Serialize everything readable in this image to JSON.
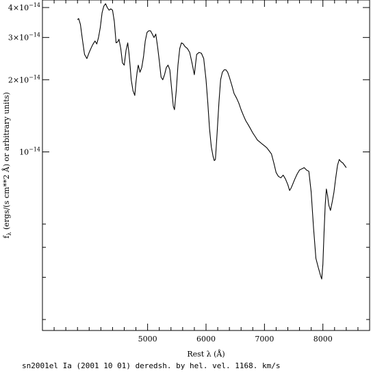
{
  "chart_data": {
    "type": "line",
    "xlabel": "Rest λ (Å)",
    "ylabel": "f_λ (ergs/(s cm**2 Å) or arbitrary units)",
    "ylabel_parts": {
      "symbol": "f",
      "subscript": "λ",
      "rest": " (ergs/(s cm**2 Å) or arbitrary units)"
    },
    "xlim": [
      3200,
      8800
    ],
    "ylim": [
      1.8e-15,
      4.3e-14
    ],
    "yscale": "log",
    "grid": false,
    "x_ticks": [
      {
        "value": 5000,
        "label": "5000"
      },
      {
        "value": 6000,
        "label": "6000"
      },
      {
        "value": 7000,
        "label": "7000"
      },
      {
        "value": 8000,
        "label": "8000"
      }
    ],
    "x_minor_ticks": [
      3400,
      3600,
      3800,
      4000,
      4200,
      4400,
      4600,
      4800,
      5200,
      5400,
      5600,
      5800,
      6200,
      6400,
      6600,
      6800,
      7200,
      7400,
      7600,
      7800,
      8200,
      8400,
      8600
    ],
    "y_ticks": [
      {
        "value": 4e-14,
        "mantissa": "4×10",
        "exponent": "−14"
      },
      {
        "value": 3e-14,
        "mantissa": "3×10",
        "exponent": "−14"
      },
      {
        "value": 2e-14,
        "mantissa": "2×10",
        "exponent": "−14"
      },
      {
        "value": 1e-14,
        "mantissa": "10",
        "exponent": "−14"
      }
    ],
    "y_minor_ticks": [
      5e-15,
      4e-15,
      3e-15,
      2e-15
    ],
    "series": [
      {
        "color": "#000000",
        "x": [
          3800,
          3820,
          3850,
          3880,
          3920,
          3960,
          4000,
          4030,
          4060,
          4100,
          4130,
          4160,
          4190,
          4220,
          4250,
          4280,
          4310,
          4340,
          4370,
          4400,
          4430,
          4460,
          4490,
          4510,
          4540,
          4570,
          4600,
          4630,
          4660,
          4680,
          4700,
          4720,
          4750,
          4780,
          4800,
          4820,
          4840,
          4870,
          4900,
          4930,
          4960,
          4990,
          5020,
          5050,
          5080,
          5110,
          5140,
          5170,
          5200,
          5230,
          5260,
          5290,
          5320,
          5350,
          5380,
          5410,
          5440,
          5460,
          5490,
          5520,
          5550,
          5580,
          5610,
          5640,
          5680,
          5720,
          5760,
          5800,
          5840,
          5880,
          5920,
          5960,
          6000,
          6030,
          6060,
          6090,
          6120,
          6140,
          6160,
          6190,
          6220,
          6250,
          6280,
          6310,
          6340,
          6370,
          6400,
          6440,
          6480,
          6520,
          6560,
          6600,
          6640,
          6680,
          6720,
          6760,
          6800,
          6840,
          6880,
          6920,
          6960,
          7000,
          7040,
          7080,
          7120,
          7160,
          7200,
          7240,
          7280,
          7320,
          7360,
          7400,
          7430,
          7460,
          7490,
          7520,
          7560,
          7600,
          7640,
          7680,
          7720,
          7760,
          7800,
          7840,
          7880,
          7920,
          7960,
          7980,
          8000,
          8020,
          8040,
          8060,
          8080,
          8100,
          8130,
          8160,
          8190,
          8220,
          8250,
          8280,
          8310,
          8340,
          8370,
          8400
        ],
        "y": [
          3.56e-14,
          3.6e-14,
          3.4e-14,
          3e-14,
          2.55e-14,
          2.45e-14,
          2.6e-14,
          2.7e-14,
          2.8e-14,
          2.9e-14,
          2.82e-14,
          3e-14,
          3.3e-14,
          3.8e-14,
          4.05e-14,
          4.15e-14,
          4e-14,
          3.9e-14,
          3.95e-14,
          3.9e-14,
          3.5e-14,
          2.85e-14,
          2.88e-14,
          2.95e-14,
          2.7e-14,
          2.35e-14,
          2.3e-14,
          2.65e-14,
          2.85e-14,
          2.6e-14,
          2.3e-14,
          2e-14,
          1.8e-14,
          1.72e-14,
          1.95e-14,
          2.15e-14,
          2.3e-14,
          2.15e-14,
          2.25e-14,
          2.5e-14,
          2.9e-14,
          3.15e-14,
          3.2e-14,
          3.2e-14,
          3.1e-14,
          3e-14,
          3.1e-14,
          2.75e-14,
          2.4e-14,
          2.05e-14,
          2e-14,
          2.1e-14,
          2.25e-14,
          2.3e-14,
          2.2e-14,
          1.85e-14,
          1.55e-14,
          1.5e-14,
          1.8e-14,
          2.3e-14,
          2.7e-14,
          2.85e-14,
          2.82e-14,
          2.75e-14,
          2.7e-14,
          2.6e-14,
          2.35e-14,
          2.1e-14,
          2.55e-14,
          2.6e-14,
          2.58e-14,
          2.45e-14,
          2e-14,
          1.6e-14,
          1.25e-14,
          1.05e-14,
          9.6e-15,
          9.2e-15,
          9.3e-15,
          1.2e-14,
          1.6e-14,
          2e-14,
          2.15e-14,
          2.2e-14,
          2.2e-14,
          2.15e-14,
          2.05e-14,
          1.9e-14,
          1.75e-14,
          1.68e-14,
          1.6e-14,
          1.5e-14,
          1.42e-14,
          1.35e-14,
          1.3e-14,
          1.25e-14,
          1.2e-14,
          1.16e-14,
          1.12e-14,
          1.1e-14,
          1.08e-14,
          1.06e-14,
          1.04e-14,
          1.01e-14,
          9.8e-15,
          9e-15,
          8.2e-15,
          7.9e-15,
          7.8e-15,
          8e-15,
          7.7e-15,
          7.3e-15,
          6.9e-15,
          7.1e-15,
          7.4e-15,
          7.7e-15,
          8.1e-15,
          8.4e-15,
          8.5e-15,
          8.6e-15,
          8.4e-15,
          8.3e-15,
          6.8e-15,
          4.8e-15,
          3.6e-15,
          3.3e-15,
          3.05e-15,
          2.95e-15,
          3.4e-15,
          4.6e-15,
          6e-15,
          7e-15,
          6.6e-15,
          6e-15,
          5.7e-15,
          6.2e-15,
          6.8e-15,
          7.8e-15,
          8.8e-15,
          9.3e-15,
          9.1e-15,
          9e-15,
          8.8e-15,
          8.6e-15
        ]
      }
    ]
  },
  "caption": "sn2001el Ia (2001 10 01) deredsh. by hel. vel.  1168. km/s"
}
